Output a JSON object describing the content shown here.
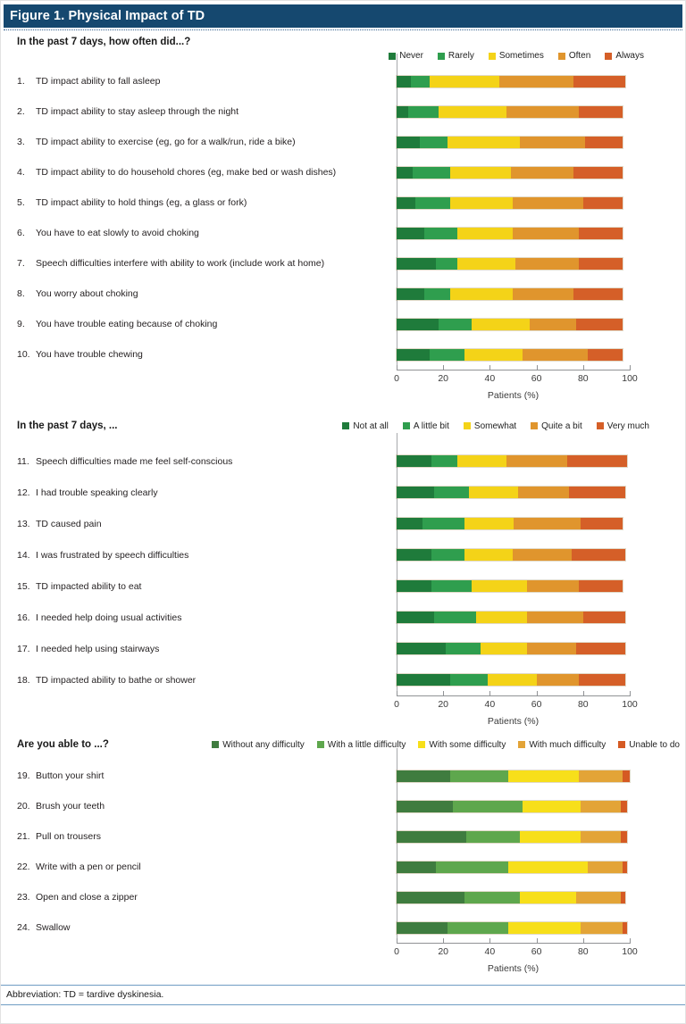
{
  "figure": {
    "title": "Figure 1. Physical Impact of TD"
  },
  "footer": {
    "abbreviation": "Abbreviation: TD = tardive dyskinesia."
  },
  "chart_data": [
    {
      "type": "bar",
      "stacked": true,
      "orientation": "horizontal",
      "question": "In the past 7 days, how often did...?",
      "legend_inline": false,
      "legend_position": "top-right",
      "series_labels": [
        "Never",
        "Rarely",
        "Sometimes",
        "Often",
        "Always"
      ],
      "colors": [
        "#1F7B3B",
        "#2F9E4E",
        "#F4D318",
        "#E0952D",
        "#D55F28"
      ],
      "xlabel": "Patients (%)",
      "x_ticks": [
        0,
        20,
        40,
        60,
        80,
        100
      ],
      "xlim": [
        0,
        100
      ],
      "rows": [
        {
          "num": "1.",
          "label": "TD impact ability to fall asleep",
          "values": [
            6,
            8,
            30,
            32,
            22
          ]
        },
        {
          "num": "2.",
          "label": "TD impact ability to stay asleep through the night",
          "values": [
            5,
            13,
            29,
            31,
            19
          ]
        },
        {
          "num": "3.",
          "label": "TD impact ability to exercise (eg, go for a walk/run, ride a bike)",
          "values": [
            10,
            12,
            31,
            28,
            16
          ]
        },
        {
          "num": "4.",
          "label": "TD impact ability to do household chores (eg, make bed or wash dishes)",
          "values": [
            7,
            16,
            26,
            27,
            21
          ]
        },
        {
          "num": "5.",
          "label": "TD impact ability to hold things (eg, a glass or fork)",
          "values": [
            8,
            15,
            27,
            30,
            17
          ]
        },
        {
          "num": "6.",
          "label": "You have to eat slowly to avoid choking",
          "values": [
            12,
            14,
            24,
            28,
            19
          ]
        },
        {
          "num": "7.",
          "label": "Speech difficulties interfere with ability to work (include work at home)",
          "values": [
            17,
            9,
            25,
            27,
            19
          ]
        },
        {
          "num": "8.",
          "label": "You worry about choking",
          "values": [
            12,
            11,
            27,
            26,
            21
          ]
        },
        {
          "num": "9.",
          "label": "You have trouble eating because of choking",
          "values": [
            18,
            14,
            25,
            20,
            20
          ]
        },
        {
          "num": "10.",
          "label": "You have trouble chewing",
          "values": [
            14,
            15,
            25,
            28,
            15
          ]
        }
      ]
    },
    {
      "type": "bar",
      "stacked": true,
      "orientation": "horizontal",
      "question": "In the past 7 days, ...",
      "legend_inline": true,
      "legend_position": "top-right",
      "series_labels": [
        "Not at all",
        "A little bit",
        "Somewhat",
        "Quite a bit",
        "Very much"
      ],
      "colors": [
        "#1F7B3B",
        "#2F9E4E",
        "#F4D318",
        "#E0952D",
        "#D55F28"
      ],
      "xlabel": "Patients (%)",
      "x_ticks": [
        0,
        20,
        40,
        60,
        80,
        100
      ],
      "xlim": [
        0,
        100
      ],
      "rows": [
        {
          "num": "11.",
          "label": "Speech difficulties made me feel self-conscious",
          "values": [
            15,
            11,
            21,
            26,
            26
          ]
        },
        {
          "num": "12.",
          "label": "I had trouble speaking clearly",
          "values": [
            16,
            15,
            21,
            22,
            24
          ]
        },
        {
          "num": "13.",
          "label": "TD caused pain",
          "values": [
            11,
            18,
            21,
            29,
            18
          ]
        },
        {
          "num": "14.",
          "label": "I was frustrated by speech difficulties",
          "values": [
            15,
            14,
            21,
            25,
            23
          ]
        },
        {
          "num": "15.",
          "label": "TD impacted ability to eat",
          "values": [
            15,
            17,
            24,
            22,
            19
          ]
        },
        {
          "num": "16.",
          "label": "I needed help doing usual activities",
          "values": [
            16,
            18,
            22,
            24,
            18
          ]
        },
        {
          "num": "17.",
          "label": "I needed help using stairways",
          "values": [
            21,
            15,
            20,
            21,
            21
          ]
        },
        {
          "num": "18.",
          "label": "TD impacted ability to bathe or shower",
          "values": [
            23,
            16,
            21,
            18,
            20
          ]
        }
      ]
    },
    {
      "type": "bar",
      "stacked": true,
      "orientation": "horizontal",
      "question": "Are you able to ...?",
      "legend_inline": true,
      "legend_position": "top-right",
      "series_labels": [
        "Without any difficulty",
        "With a little difficulty",
        "With some difficulty",
        "With much difficulty",
        "Unable to do"
      ],
      "colors": [
        "#3F7C3F",
        "#5EA74D",
        "#F7DF1A",
        "#E3A437",
        "#D55A23"
      ],
      "xlabel": "Patients (%)",
      "x_ticks": [
        0,
        20,
        40,
        60,
        80,
        100
      ],
      "xlim": [
        0,
        100
      ],
      "rows": [
        {
          "num": "19.",
          "label": "Button your shirt",
          "values": [
            23,
            25,
            30,
            19,
            3
          ]
        },
        {
          "num": "20.",
          "label": "Brush your teeth",
          "values": [
            24,
            30,
            25,
            17,
            3
          ]
        },
        {
          "num": "21.",
          "label": "Pull on trousers",
          "values": [
            30,
            23,
            26,
            17,
            3
          ]
        },
        {
          "num": "22.",
          "label": "Write with a pen or pencil",
          "values": [
            17,
            31,
            34,
            15,
            2
          ]
        },
        {
          "num": "23.",
          "label": "Open and close a zipper",
          "values": [
            29,
            24,
            24,
            19,
            2
          ]
        },
        {
          "num": "24.",
          "label": "Swallow",
          "values": [
            22,
            26,
            31,
            18,
            2
          ]
        }
      ]
    }
  ]
}
